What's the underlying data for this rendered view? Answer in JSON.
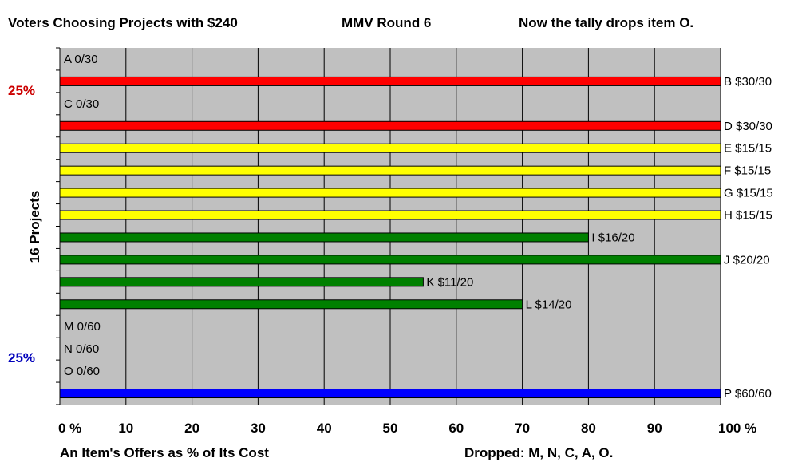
{
  "header": {
    "left": "Voters Choosing Projects with $240",
    "middle": "MMV Round 6",
    "right": "Now the tally drops item O."
  },
  "side": {
    "top_pct": "25%",
    "bottom_pct": "25%",
    "top_pct_color": "#cc0000",
    "bottom_pct_color": "#0000bb"
  },
  "footer": {
    "dropped": "Dropped: M, N, C, A, O."
  },
  "colors": {
    "plot_bg": "#c0c0c0",
    "grid": "#000000"
  },
  "chart_data": {
    "type": "bar",
    "orientation": "horizontal",
    "ylabel": "16 Projects",
    "xlabel": "An Item's Offers as % of Its Cost",
    "xlim": [
      0,
      100
    ],
    "x_ticks": [
      0,
      10,
      20,
      30,
      40,
      50,
      60,
      70,
      80,
      90,
      100
    ],
    "x_tick_labels": [
      "0 %",
      "10",
      "20",
      "30",
      "40",
      "50",
      "60",
      "70",
      "80",
      "90",
      "100 %"
    ],
    "grid": true,
    "categories": [
      "A",
      "B",
      "C",
      "D",
      "E",
      "F",
      "G",
      "H",
      "I",
      "J",
      "K",
      "L",
      "M",
      "N",
      "O",
      "P"
    ],
    "values": [
      0,
      100,
      0,
      100,
      100,
      100,
      100,
      100,
      80,
      100,
      55,
      70,
      0,
      0,
      0,
      100
    ],
    "labels": [
      "A 0/30",
      "B $30/30",
      "C 0/30",
      "D $30/30",
      "E $15/15",
      "F $15/15",
      "G $15/15",
      "H $15/15",
      "I $16/20",
      "J $20/20",
      "K $11/20",
      "L $14/20",
      "M 0/60",
      "N 0/60",
      "O 0/60",
      "P $60/60"
    ],
    "bar_colors": [
      "#ff0000",
      "#ff0000",
      "#ff0000",
      "#ff0000",
      "#ffff00",
      "#ffff00",
      "#ffff00",
      "#ffff00",
      "#008000",
      "#008000",
      "#008000",
      "#008000",
      "#0000ff",
      "#0000ff",
      "#0000ff",
      "#0000ff"
    ]
  }
}
